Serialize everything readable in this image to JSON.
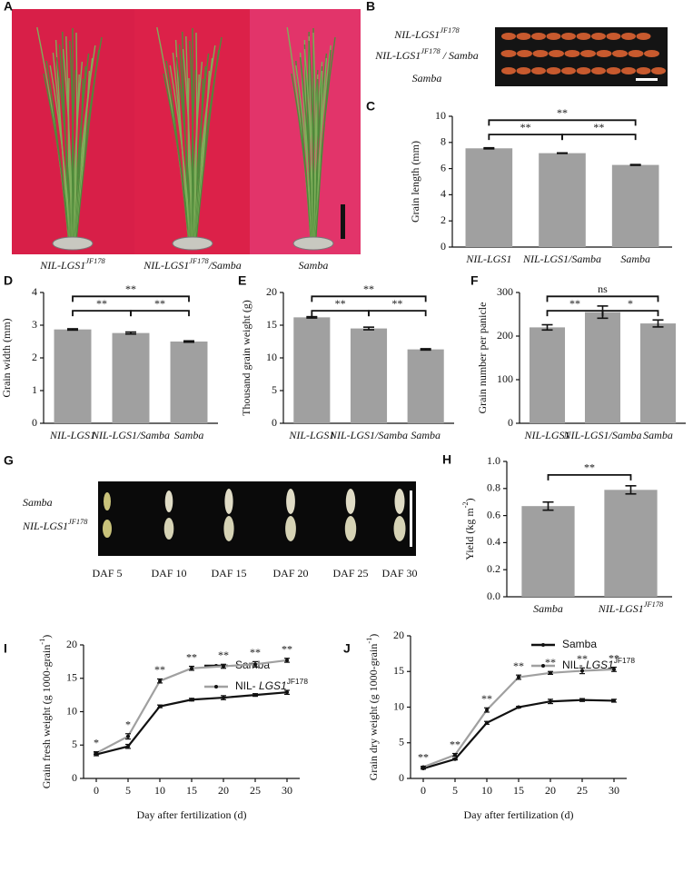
{
  "photos": [
    {
      "letter": "A",
      "labels": [
        {
          "text": "NIL-LGS1",
          "sup": "JF178"
        },
        {
          "text": "NIL-LGS1",
          "sup": "JF178",
          "tail": "/Samba"
        },
        "Samba"
      ]
    },
    {
      "letter": "B",
      "labels": [
        {
          "text": "NIL-LGS1",
          "sup": "JF178"
        },
        {
          "text": "NIL-LGS1",
          "sup": "JF178",
          "tail": " / Samba"
        },
        "Samba"
      ]
    },
    {
      "letter": "G",
      "labels": [
        "Samba",
        {
          "text": "NIL-LGS1",
          "sup": "JF178"
        }
      ],
      "columns": [
        "DAF 5",
        "DAF 10",
        "DAF 15",
        "DAF 20",
        "DAF 25",
        "DAF 30"
      ]
    }
  ],
  "chart_data": [
    {
      "type": "bar",
      "letter": "C",
      "ylabel": "Grain length (mm)",
      "categories": [
        "NIL-LGS1",
        "NIL-LGS1/Samba",
        "Samba"
      ],
      "values": [
        7.55,
        7.18,
        6.28
      ],
      "errors": [
        0.04,
        0.02,
        0.03
      ],
      "color": "#a0a0a0",
      "ylim": [
        0,
        10
      ],
      "yticks": [
        0,
        2,
        4,
        6,
        8,
        10
      ],
      "brackets": [
        {
          "label": "**",
          "between": [
            0,
            1
          ]
        },
        {
          "label": "**",
          "between": [
            1,
            2
          ]
        },
        {
          "label": "**",
          "between": [
            0,
            2
          ]
        }
      ]
    },
    {
      "type": "bar",
      "letter": "D",
      "ylabel": "Grain width (mm)",
      "categories": [
        "NIL-LGS1",
        "NIL-LGS1/Samba",
        "Samba"
      ],
      "values": [
        2.87,
        2.76,
        2.5
      ],
      "errors": [
        0.02,
        0.03,
        0.02
      ],
      "color": "#a0a0a0",
      "ylim": [
        0,
        4
      ],
      "yticks": [
        0,
        1,
        2,
        3,
        4
      ],
      "brackets": [
        {
          "label": "**",
          "between": [
            0,
            1
          ]
        },
        {
          "label": "**",
          "between": [
            1,
            2
          ]
        },
        {
          "label": "**",
          "between": [
            0,
            2
          ]
        }
      ]
    },
    {
      "type": "bar",
      "letter": "E",
      "ylabel": "Thousand grain weight (g)",
      "categories": [
        "NIL-LGS1",
        "NIL-LGS1/Samba",
        "Samba"
      ],
      "values": [
        16.2,
        14.5,
        11.3
      ],
      "errors": [
        0.1,
        0.2,
        0.1
      ],
      "color": "#a0a0a0",
      "ylim": [
        0,
        20
      ],
      "yticks": [
        0,
        5,
        10,
        15,
        20
      ],
      "brackets": [
        {
          "label": "**",
          "between": [
            0,
            1
          ]
        },
        {
          "label": "**",
          "between": [
            1,
            2
          ]
        },
        {
          "label": "**",
          "between": [
            0,
            2
          ]
        }
      ]
    },
    {
      "type": "bar",
      "letter": "F",
      "ylabel": "Grain number per panicle",
      "categories": [
        "NIL-LGS1",
        "NIL-LGS1/Samba",
        "Samba"
      ],
      "values": [
        220,
        255,
        229
      ],
      "errors": [
        6,
        14,
        8
      ],
      "color": "#a0a0a0",
      "ylim": [
        0,
        300
      ],
      "yticks": [
        0,
        100,
        200,
        300
      ],
      "brackets": [
        {
          "label": "**",
          "between": [
            0,
            1
          ]
        },
        {
          "label": "*",
          "between": [
            1,
            2
          ]
        },
        {
          "label": "ns",
          "between": [
            0,
            2
          ]
        }
      ]
    },
    {
      "type": "bar",
      "letter": "H",
      "ylabel": {
        "text": "Yield (kg m",
        "sup": "-2",
        "tail": ")"
      },
      "categories": [
        "Samba",
        {
          "text": "NIL-LGS1",
          "sup": "JF178"
        }
      ],
      "values": [
        0.67,
        0.79
      ],
      "errors": [
        0.03,
        0.03
      ],
      "color": "#a0a0a0",
      "ylim": [
        0,
        1
      ],
      "yticks": [
        {
          "value": 0,
          "label": "0.0"
        },
        0.2,
        0.4,
        0.6,
        0.8,
        {
          "value": 1,
          "label": "1.0"
        }
      ],
      "brackets": [
        {
          "label": "**",
          "between": [
            0,
            1
          ]
        }
      ]
    },
    {
      "type": "line",
      "letter": "I",
      "xlabel": "Day after fertilization (d)",
      "ylabel": {
        "text": "Grain fresh weight (g 1000-grain",
        "sup": "-1",
        "tail": ")"
      },
      "x": [
        0,
        5,
        10,
        15,
        20,
        25,
        30
      ],
      "xlim": [
        -2,
        32
      ],
      "xticks": [
        0,
        5,
        10,
        15,
        20,
        25,
        30
      ],
      "ylim": [
        0,
        20
      ],
      "yticks": [
        0,
        5,
        10,
        15,
        20
      ],
      "series": [
        {
          "name": "Samba",
          "color": "#111111",
          "values": [
            3.6,
            4.8,
            10.8,
            11.8,
            12.1,
            12.5,
            12.9
          ],
          "errors": [
            0.2,
            0.3,
            0.2,
            0.2,
            0.3,
            0.2,
            0.3
          ]
        },
        {
          "name": {
            "text": "NIL- ",
            "ital": "LGS1",
            "sup": "JF178"
          },
          "color": "#a0a0a0",
          "values": [
            3.8,
            6.3,
            14.6,
            16.5,
            16.8,
            17.1,
            17.7
          ],
          "errors": [
            0.2,
            0.4,
            0.3,
            0.3,
            0.3,
            0.4,
            0.3
          ]
        }
      ],
      "significance": [
        "*",
        "*",
        "**",
        "**",
        "**",
        "**",
        "**"
      ]
    },
    {
      "type": "line",
      "letter": "J",
      "xlabel": "Day after fertilization (d)",
      "ylabel": {
        "text": "Grain dry weight (g 1000-grain",
        "sup": "-1",
        "tail": ")"
      },
      "x": [
        0,
        5,
        10,
        15,
        20,
        25,
        30
      ],
      "xlim": [
        -2,
        32
      ],
      "xticks": [
        0,
        5,
        10,
        15,
        20,
        25,
        30
      ],
      "ylim": [
        0,
        20
      ],
      "yticks": [
        0,
        5,
        10,
        15,
        20
      ],
      "series": [
        {
          "name": "Samba",
          "color": "#111111",
          "values": [
            1.4,
            2.7,
            7.8,
            10.0,
            10.8,
            11.0,
            10.9
          ],
          "errors": [
            0.1,
            0.1,
            0.2,
            0.1,
            0.3,
            0.2,
            0.2
          ]
        },
        {
          "name": {
            "text": "NIL- ",
            "ital": "LGS1",
            "sup": "JF178"
          },
          "color": "#a0a0a0",
          "values": [
            1.6,
            3.3,
            9.6,
            14.2,
            14.8,
            15.1,
            15.3
          ],
          "errors": [
            0.1,
            0.2,
            0.3,
            0.3,
            0.2,
            0.4,
            0.3
          ]
        }
      ],
      "significance": [
        "**",
        "**",
        "**",
        "**",
        "**",
        "**",
        "**"
      ]
    }
  ]
}
